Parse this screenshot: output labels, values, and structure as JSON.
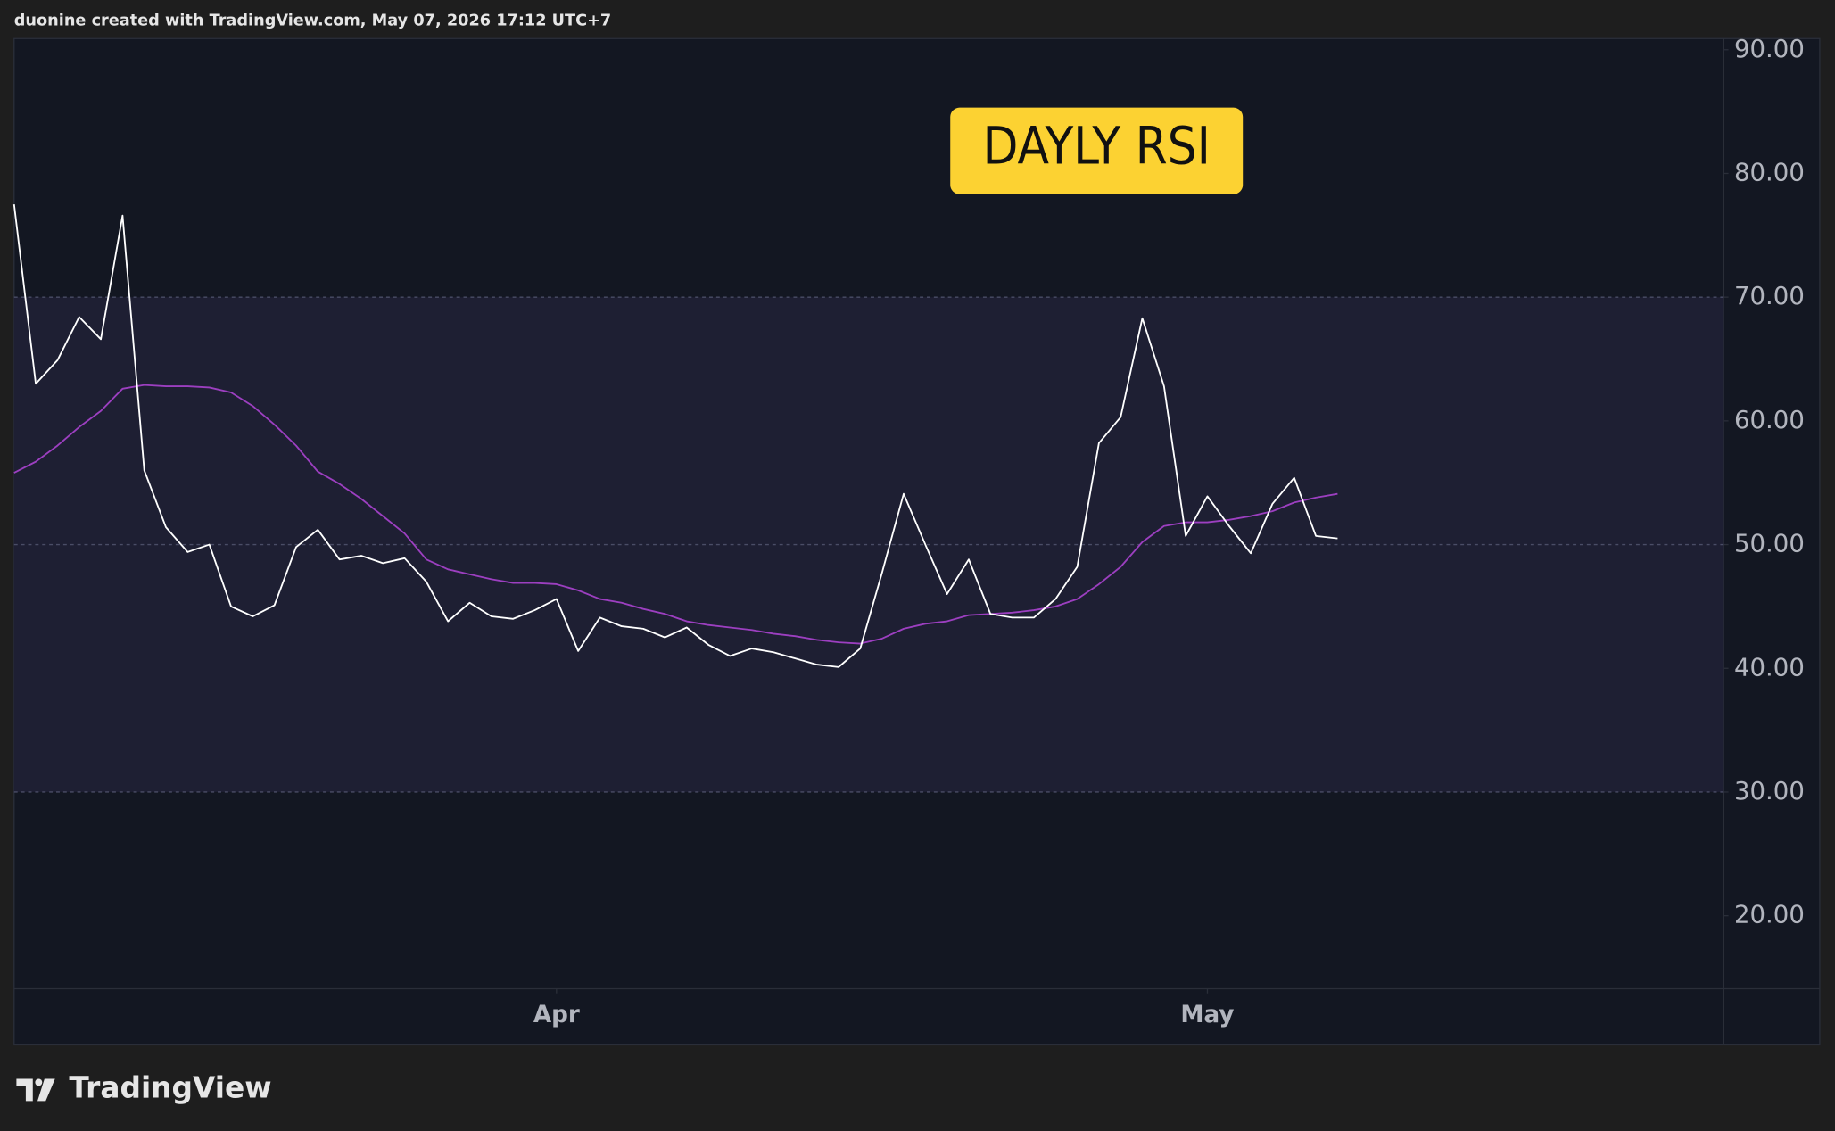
{
  "header": "duonine created with TradingView.com, May 07, 2026 17:12 UTC+7",
  "footer": {
    "brand": "TradingView"
  },
  "chart_data": {
    "type": "line",
    "annotation": "DAYLY RSI",
    "xlim": [
      0,
      78.8
    ],
    "xticks": [
      {
        "value": 25,
        "label": "Apr"
      },
      {
        "value": 55,
        "label": "May"
      }
    ],
    "ylim": [
      14.1,
      90.9
    ],
    "yticks": [
      {
        "value": 20,
        "label": "20.00"
      },
      {
        "value": 30,
        "label": "30.00"
      },
      {
        "value": 40,
        "label": "40.00"
      },
      {
        "value": 50,
        "label": "50.00"
      },
      {
        "value": 60,
        "label": "60.00"
      },
      {
        "value": 70,
        "label": "70.00"
      },
      {
        "value": 80,
        "label": "80.00"
      },
      {
        "value": 90,
        "label": "90.00"
      }
    ],
    "levels": [
      30,
      50,
      70
    ],
    "series": [
      {
        "color": "#ffffff",
        "values": [
          77.5,
          63.0,
          64.9,
          68.4,
          66.6,
          76.6,
          56.0,
          51.4,
          49.4,
          50.0,
          45.0,
          44.2,
          45.1,
          49.8,
          51.2,
          48.8,
          49.1,
          48.5,
          48.9,
          47.0,
          43.8,
          45.3,
          44.2,
          44.0,
          44.7,
          45.6,
          41.4,
          44.1,
          43.4,
          43.2,
          42.5,
          43.3,
          41.9,
          41.0,
          41.6,
          41.3,
          40.8,
          40.3,
          40.1,
          41.6,
          47.7,
          54.1,
          50.0,
          46.0,
          48.8,
          44.4,
          44.1,
          44.1,
          45.6,
          48.2,
          58.2,
          60.3,
          68.3,
          62.8,
          50.7,
          53.9,
          51.5,
          49.3,
          53.3,
          55.4,
          50.7,
          50.5
        ]
      },
      {
        "color": "#9c3fc0",
        "values": [
          55.8,
          56.7,
          58.0,
          59.5,
          60.8,
          62.6,
          62.9,
          62.8,
          62.8,
          62.7,
          62.3,
          61.2,
          59.7,
          58.0,
          55.9,
          54.9,
          53.7,
          52.3,
          50.9,
          48.8,
          48.0,
          47.6,
          47.2,
          46.9,
          46.9,
          46.8,
          46.3,
          45.6,
          45.3,
          44.8,
          44.4,
          43.8,
          43.5,
          43.3,
          43.1,
          42.8,
          42.6,
          42.3,
          42.1,
          42.0,
          42.4,
          43.2,
          43.6,
          43.8,
          44.3,
          44.4,
          44.5,
          44.7,
          45.0,
          45.6,
          46.8,
          48.2,
          50.2,
          51.5,
          51.8,
          51.8,
          52.0,
          52.3,
          52.7,
          53.4,
          53.8,
          54.1
        ]
      }
    ]
  }
}
